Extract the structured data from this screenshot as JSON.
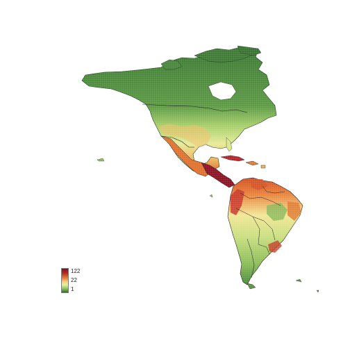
{
  "legend": {
    "labels": [
      "122",
      "22",
      "1"
    ],
    "colors": [
      "#7d0f24",
      "#d1501f",
      "#f2ad52",
      "#f4ef9c",
      "#b8d86d",
      "#6fae4a",
      "#2f6e2c"
    ]
  },
  "colors": {
    "boundary": "#111111",
    "background": "#ffffff"
  }
}
